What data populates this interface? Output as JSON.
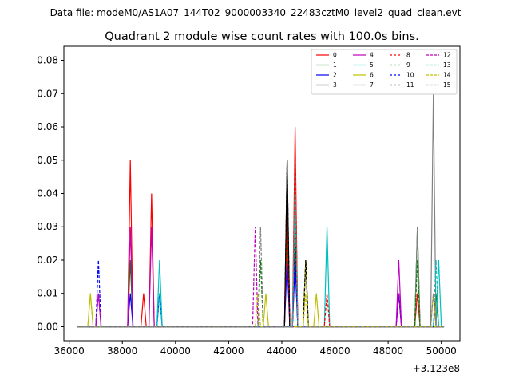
{
  "suptitle": "Data file: modeM0/AS1A07_144T02_9000003340_22483cztM0_level2_quad_clean.evt",
  "chart_data": {
    "type": "line",
    "title": "Quadrant 2 module wise count rates with 100.0s bins.",
    "xlabel": "",
    "ylabel": "",
    "x_offset_label": "+3.123e8",
    "xlim": [
      35800,
      50700
    ],
    "ylim": [
      -0.0042,
      0.0842
    ],
    "x_ticks": [
      36000,
      38000,
      40000,
      42000,
      44000,
      46000,
      48000,
      50000
    ],
    "x_tick_labels": [
      "36000",
      "38000",
      "40000",
      "42000",
      "44000",
      "46000",
      "48000",
      "50000"
    ],
    "y_ticks": [
      0.0,
      0.01,
      0.02,
      0.03,
      0.04,
      0.05,
      0.06,
      0.07,
      0.08
    ],
    "y_tick_labels": [
      "0.00",
      "0.01",
      "0.02",
      "0.03",
      "0.04",
      "0.05",
      "0.06",
      "0.07",
      "0.08"
    ],
    "grid": false,
    "legend_position": "top-right",
    "x_range": [
      36300,
      50100
    ],
    "bin_width": 100,
    "series": [
      {
        "name": "0",
        "color": "#ff0000",
        "dashed": false,
        "peaks": [
          [
            38300,
            0.05
          ],
          [
            39100,
            0.04
          ],
          [
            38800,
            0.01
          ],
          [
            44200,
            0.04
          ],
          [
            44500,
            0.06
          ],
          [
            48400,
            0.01
          ],
          [
            49100,
            0.01
          ]
        ]
      },
      {
        "name": "1",
        "color": "#008000",
        "dashed": false,
        "peaks": [
          [
            38300,
            0.02
          ],
          [
            44200,
            0.03
          ],
          [
            44500,
            0.04
          ],
          [
            49100,
            0.03
          ],
          [
            49800,
            0.01
          ]
        ]
      },
      {
        "name": "2",
        "color": "#0000ff",
        "dashed": false,
        "peaks": [
          [
            38300,
            0.01
          ],
          [
            39400,
            0.01
          ],
          [
            44200,
            0.02
          ],
          [
            44500,
            0.02
          ],
          [
            48400,
            0.01
          ]
        ]
      },
      {
        "name": "3",
        "color": "#000000",
        "dashed": false,
        "peaks": [
          [
            44200,
            0.05
          ],
          [
            44500,
            0.03
          ],
          [
            44900,
            0.02
          ]
        ]
      },
      {
        "name": "4",
        "color": "#bf00bf",
        "dashed": false,
        "peaks": [
          [
            38300,
            0.03
          ],
          [
            39100,
            0.03
          ],
          [
            37100,
            0.01
          ],
          [
            48400,
            0.02
          ]
        ]
      },
      {
        "name": "5",
        "color": "#00bfbf",
        "dashed": false,
        "peaks": [
          [
            39400,
            0.02
          ],
          [
            45700,
            0.03
          ],
          [
            49900,
            0.02
          ]
        ]
      },
      {
        "name": "6",
        "color": "#bfbf00",
        "dashed": false,
        "peaks": [
          [
            36800,
            0.01
          ],
          [
            43400,
            0.01
          ],
          [
            44900,
            0.02
          ],
          [
            45300,
            0.01
          ],
          [
            49700,
            0.01
          ]
        ]
      },
      {
        "name": "7",
        "color": "#808080",
        "dashed": false,
        "peaks": [
          [
            49700,
            0.07
          ],
          [
            49100,
            0.03
          ],
          [
            44500,
            0.05
          ]
        ]
      },
      {
        "name": "8",
        "color": "#ff0000",
        "dashed": true,
        "peaks": [
          [
            44200,
            0.03
          ],
          [
            44500,
            0.05
          ],
          [
            45700,
            0.01
          ]
        ]
      },
      {
        "name": "9",
        "color": "#008000",
        "dashed": true,
        "peaks": [
          [
            43200,
            0.02
          ],
          [
            44500,
            0.04
          ],
          [
            49100,
            0.02
          ]
        ]
      },
      {
        "name": "10",
        "color": "#0000ff",
        "dashed": true,
        "peaks": [
          [
            37100,
            0.02
          ],
          [
            44500,
            0.02
          ]
        ]
      },
      {
        "name": "11",
        "color": "#000000",
        "dashed": true,
        "peaks": [
          [
            44200,
            0.05
          ],
          [
            44900,
            0.02
          ]
        ]
      },
      {
        "name": "12",
        "color": "#bf00bf",
        "dashed": true,
        "peaks": [
          [
            43000,
            0.03
          ],
          [
            37100,
            0.01
          ],
          [
            48400,
            0.01
          ]
        ]
      },
      {
        "name": "13",
        "color": "#00bfbf",
        "dashed": true,
        "peaks": [
          [
            44500,
            0.04
          ],
          [
            49800,
            0.02
          ],
          [
            39400,
            0.01
          ]
        ]
      },
      {
        "name": "14",
        "color": "#bfbf00",
        "dashed": true,
        "peaks": [
          [
            36800,
            0.01
          ],
          [
            44900,
            0.01
          ],
          [
            43100,
            0.01
          ]
        ]
      },
      {
        "name": "15",
        "color": "#808080",
        "dashed": true,
        "peaks": [
          [
            43200,
            0.03
          ],
          [
            44500,
            0.04
          ],
          [
            49700,
            0.01
          ]
        ]
      }
    ]
  }
}
